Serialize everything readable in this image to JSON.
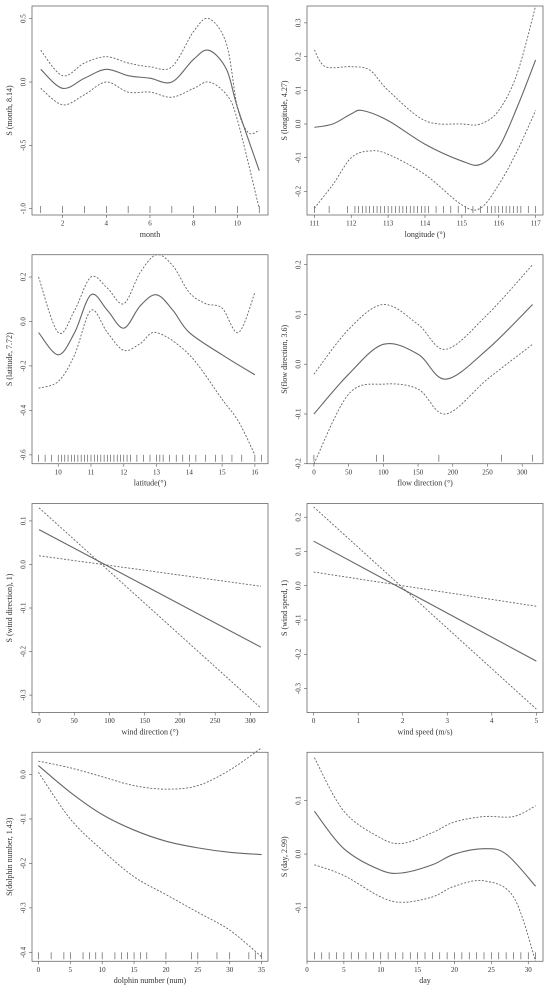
{
  "chart_data": [
    {
      "type": "line",
      "xlabel": "month",
      "ylabel": "S (month, 8.14)",
      "xlim": [
        0.6,
        11.4
      ],
      "ylim": [
        -1.05,
        0.6
      ],
      "xticks": [
        2,
        4,
        6,
        8,
        10
      ],
      "yticks": [
        {
          "value": -1,
          "label": "-1.0"
        },
        -0.5,
        {
          "value": 0,
          "label": "0.0"
        },
        0.5
      ],
      "series": [
        {
          "color": "#666666",
          "dash": false,
          "x": [
            1,
            2,
            3,
            4,
            5,
            6,
            7,
            8,
            8.7,
            9.5,
            10,
            11
          ],
          "values": [
            0.1,
            -0.05,
            0.03,
            0.1,
            0.05,
            0.03,
            0,
            0.18,
            0.25,
            0.1,
            -0.2,
            -0.7
          ]
        },
        {
          "color": "#666666",
          "dash": true,
          "x": [
            1,
            2,
            3,
            4,
            5,
            6,
            7,
            8,
            8.7,
            9.5,
            10,
            10.5,
            11
          ],
          "values": [
            0.25,
            0.05,
            0.15,
            0.2,
            0.15,
            0.12,
            0.12,
            0.4,
            0.5,
            0.3,
            -0.2,
            -0.4,
            -0.38
          ]
        },
        {
          "color": "#666666",
          "dash": true,
          "x": [
            1,
            2,
            3,
            4,
            5,
            6,
            7,
            8,
            8.7,
            9.5,
            10,
            11
          ],
          "values": [
            -0.05,
            -0.18,
            -0.1,
            0,
            -0.08,
            -0.08,
            -0.12,
            -0.05,
            0,
            -0.1,
            -0.3,
            -1.0
          ]
        }
      ],
      "rug": [
        1,
        2,
        3,
        4,
        5,
        6,
        7,
        8,
        9,
        10,
        11
      ]
    },
    {
      "type": "line",
      "xlabel": "longitude (°)",
      "ylabel": "S (longitude, 4.27)",
      "xlim": [
        110.8,
        117.2
      ],
      "ylim": [
        -0.27,
        0.35
      ],
      "xticks": [
        111,
        112,
        113,
        114,
        115,
        116,
        117
      ],
      "yticks": [
        -0.2,
        -0.1,
        {
          "value": 0,
          "label": "0.0"
        },
        0.1,
        0.2,
        0.3
      ],
      "series": [
        {
          "color": "#666666",
          "dash": false,
          "x": [
            111,
            111.5,
            112,
            112.3,
            113,
            114,
            115,
            115.5,
            116,
            116.5,
            117
          ],
          "values": [
            -0.01,
            0,
            0.03,
            0.04,
            0.01,
            -0.06,
            -0.11,
            -0.12,
            -0.07,
            0.05,
            0.19
          ]
        },
        {
          "color": "#666666",
          "dash": true,
          "x": [
            111,
            111.3,
            112,
            112.5,
            113,
            114,
            115,
            115.5,
            116,
            116.5,
            117
          ],
          "values": [
            0.22,
            0.17,
            0.17,
            0.16,
            0.1,
            0.01,
            0,
            0,
            0.04,
            0.15,
            0.35
          ]
        },
        {
          "color": "#666666",
          "dash": true,
          "x": [
            111,
            111.5,
            112,
            112.5,
            113,
            114,
            115,
            115.5,
            116,
            116.5,
            117
          ],
          "values": [
            -0.25,
            -0.18,
            -0.1,
            -0.08,
            -0.09,
            -0.15,
            -0.24,
            -0.25,
            -0.18,
            -0.08,
            0.04
          ]
        }
      ],
      "rug": [
        111,
        111.4,
        111.9,
        112.1,
        112.2,
        112.3,
        112.4,
        112.5,
        112.6,
        112.7,
        112.8,
        112.9,
        113,
        113.1,
        113.2,
        113.3,
        113.4,
        113.5,
        113.6,
        113.7,
        113.8,
        113.9,
        114,
        114.1,
        114.3,
        114.5,
        114.7,
        114.9,
        115.1,
        115.3,
        115.5,
        115.7,
        115.8,
        115.9,
        116,
        116.1,
        116.2,
        116.3,
        116.4,
        116.5,
        116.6,
        116.8,
        117
      ]
    },
    {
      "type": "line",
      "xlabel": "latitude(°)",
      "ylabel": "S (latitude, 7.72)",
      "xlim": [
        9.2,
        16.4
      ],
      "ylim": [
        -0.64,
        0.3
      ],
      "xticks": [
        10,
        11,
        12,
        13,
        14,
        15,
        16
      ],
      "yticks": [
        -0.6,
        -0.4,
        -0.2,
        {
          "value": 0,
          "label": "0.0"
        },
        0.2
      ],
      "series": [
        {
          "color": "#666666",
          "dash": false,
          "x": [
            9.4,
            10,
            10.5,
            11,
            11.5,
            12,
            12.5,
            13,
            13.5,
            14,
            15,
            16
          ],
          "values": [
            -0.05,
            -0.15,
            -0.05,
            0.12,
            0.05,
            -0.03,
            0.07,
            0.12,
            0.05,
            -0.05,
            -0.15,
            -0.24
          ]
        },
        {
          "color": "#666666",
          "dash": true,
          "x": [
            9.4,
            10,
            10.5,
            11,
            11.5,
            12,
            12.5,
            13,
            13.5,
            14,
            14.5,
            15,
            15.5,
            16
          ],
          "values": [
            0.2,
            -0.05,
            0.05,
            0.2,
            0.15,
            0.08,
            0.22,
            0.3,
            0.25,
            0.13,
            0.08,
            0.06,
            -0.05,
            0.13
          ]
        },
        {
          "color": "#666666",
          "dash": true,
          "x": [
            9.4,
            10,
            10.5,
            11,
            11.5,
            12,
            12.5,
            13,
            14,
            15,
            15.5,
            16
          ],
          "values": [
            -0.3,
            -0.27,
            -0.15,
            0.05,
            -0.05,
            -0.13,
            -0.1,
            -0.05,
            -0.15,
            -0.35,
            -0.45,
            -0.6
          ]
        }
      ],
      "rug": [
        9.4,
        9.6,
        9.8,
        10,
        10.1,
        10.2,
        10.3,
        10.4,
        10.5,
        10.6,
        10.7,
        10.8,
        10.9,
        11,
        11.1,
        11.2,
        11.3,
        11.4,
        11.5,
        11.6,
        11.7,
        11.8,
        11.9,
        12,
        12.1,
        12.2,
        12.4,
        12.6,
        12.8,
        13,
        13.1,
        13.2,
        13.4,
        13.6,
        13.8,
        14,
        14.2,
        14.5,
        14.8,
        15,
        15.3,
        15.6,
        16,
        16.2
      ]
    },
    {
      "type": "line",
      "xlabel": "flow direction (°)",
      "ylabel": "S(flow direction, 3.6)",
      "xlim": [
        -10,
        330
      ],
      "ylim": [
        -0.2,
        0.22
      ],
      "xticks": [
        0,
        50,
        100,
        150,
        200,
        250,
        300
      ],
      "yticks": [
        -0.2,
        -0.1,
        {
          "value": 0,
          "label": "0.0"
        },
        0.1,
        0.2
      ],
      "series": [
        {
          "color": "#666666",
          "dash": false,
          "x": [
            0,
            50,
            100,
            150,
            190,
            250,
            315
          ],
          "values": [
            -0.1,
            -0.02,
            0.04,
            0.02,
            -0.03,
            0.03,
            0.12
          ]
        },
        {
          "color": "#666666",
          "dash": true,
          "x": [
            0,
            50,
            100,
            150,
            190,
            250,
            315
          ],
          "values": [
            -0.02,
            0.07,
            0.12,
            0.08,
            0.03,
            0.1,
            0.2
          ]
        },
        {
          "color": "#666666",
          "dash": true,
          "x": [
            0,
            50,
            100,
            150,
            190,
            250,
            315
          ],
          "values": [
            -0.2,
            -0.06,
            -0.04,
            -0.05,
            -0.1,
            -0.03,
            0.04
          ]
        }
      ],
      "rug": [
        0,
        90,
        100,
        180,
        270,
        315
      ]
    },
    {
      "type": "line",
      "xlabel": "wind direction (°)",
      "ylabel": "S (wind direction), 1)",
      "xlim": [
        -10,
        325
      ],
      "ylim": [
        -0.34,
        0.14
      ],
      "xticks": [
        0,
        50,
        100,
        150,
        200,
        250,
        300
      ],
      "yticks": [
        -0.3,
        -0.2,
        -0.1,
        {
          "value": 0,
          "label": "0.0"
        },
        0.1
      ],
      "series": [
        {
          "color": "#666666",
          "dash": false,
          "x": [
            0,
            315
          ],
          "values": [
            0.08,
            -0.19
          ]
        },
        {
          "color": "#666666",
          "dash": true,
          "x": [
            0,
            315
          ],
          "values": [
            0.13,
            -0.33
          ]
        },
        {
          "color": "#666666",
          "dash": true,
          "x": [
            0,
            315
          ],
          "values": [
            0.02,
            -0.05
          ]
        }
      ],
      "rug": []
    },
    {
      "type": "line",
      "xlabel": "wind speed (m/s)",
      "ylabel": "S (wind speed, 1)",
      "xlim": [
        -0.15,
        5.15
      ],
      "ylim": [
        -0.37,
        0.24
      ],
      "xticks": [
        0,
        1,
        2,
        3,
        4,
        5
      ],
      "yticks": [
        -0.3,
        -0.2,
        -0.1,
        {
          "value": 0,
          "label": "0.0"
        },
        0.1,
        0.2
      ],
      "series": [
        {
          "color": "#666666",
          "dash": false,
          "x": [
            0,
            5
          ],
          "values": [
            0.13,
            -0.22
          ]
        },
        {
          "color": "#666666",
          "dash": true,
          "x": [
            0,
            5
          ],
          "values": [
            0.23,
            -0.36
          ]
        },
        {
          "color": "#666666",
          "dash": true,
          "x": [
            0,
            5
          ],
          "values": [
            0.04,
            -0.06
          ]
        }
      ],
      "rug": []
    },
    {
      "type": "line",
      "xlabel": "dolphin number (num)",
      "ylabel": "S(dolphin number, 1.43)",
      "xlim": [
        -1,
        36
      ],
      "ylim": [
        -0.42,
        0.05
      ],
      "xticks": [
        0,
        5,
        10,
        15,
        20,
        25,
        30,
        35
      ],
      "yticks": [
        -0.4,
        -0.3,
        -0.2,
        -0.1,
        {
          "value": 0,
          "label": "0.0"
        }
      ],
      "series": [
        {
          "color": "#666666",
          "dash": false,
          "x": [
            0,
            5,
            10,
            15,
            20,
            25,
            30,
            35
          ],
          "values": [
            0.02,
            -0.04,
            -0.09,
            -0.125,
            -0.15,
            -0.165,
            -0.175,
            -0.18
          ]
        },
        {
          "color": "#666666",
          "dash": true,
          "x": [
            0,
            5,
            10,
            15,
            20,
            25,
            30,
            35
          ],
          "values": [
            0.03,
            0.015,
            -0.005,
            -0.025,
            -0.033,
            -0.025,
            0.01,
            0.06
          ]
        },
        {
          "color": "#666666",
          "dash": true,
          "x": [
            0,
            5,
            10,
            15,
            20,
            25,
            30,
            35
          ],
          "values": [
            0.005,
            -0.1,
            -0.17,
            -0.23,
            -0.27,
            -0.31,
            -0.35,
            -0.41
          ]
        }
      ],
      "rug": [
        0,
        2,
        4,
        5,
        7,
        8,
        9,
        10,
        12,
        13,
        14,
        15,
        16,
        17,
        20,
        24,
        25,
        28,
        30,
        33,
        34,
        35
      ]
    },
    {
      "type": "line",
      "xlabel": "day",
      "ylabel": "S (day, 2.99)",
      "xlim": [
        0,
        32
      ],
      "ylim": [
        -0.2,
        0.19
      ],
      "xticks": [
        0,
        5,
        10,
        15,
        20,
        25,
        30
      ],
      "yticks": [
        -0.1,
        {
          "value": 0,
          "label": "0.0"
        },
        0.1
      ],
      "series": [
        {
          "color": "#666666",
          "dash": false,
          "x": [
            1,
            5,
            10,
            13,
            17,
            20,
            24,
            27,
            31
          ],
          "values": [
            0.08,
            0.01,
            -0.03,
            -0.035,
            -0.02,
            0,
            0.01,
            0,
            -0.06
          ]
        },
        {
          "color": "#666666",
          "dash": true,
          "x": [
            1,
            5,
            10,
            13,
            17,
            20,
            24,
            28,
            31
          ],
          "values": [
            0.18,
            0.08,
            0.03,
            0.02,
            0.04,
            0.06,
            0.07,
            0.07,
            0.09
          ]
        },
        {
          "color": "#666666",
          "dash": true,
          "x": [
            1,
            5,
            10,
            13,
            17,
            20,
            24,
            28,
            31
          ],
          "values": [
            -0.02,
            -0.04,
            -0.08,
            -0.09,
            -0.08,
            -0.06,
            -0.05,
            -0.08,
            -0.2
          ]
        }
      ],
      "rug": [
        1,
        2,
        3,
        4,
        5,
        6,
        7,
        8,
        9,
        10,
        11,
        12,
        13,
        14,
        15,
        16,
        17,
        18,
        19,
        20,
        21,
        22,
        23,
        24,
        25,
        26,
        27,
        28,
        29,
        30,
        31
      ]
    }
  ]
}
